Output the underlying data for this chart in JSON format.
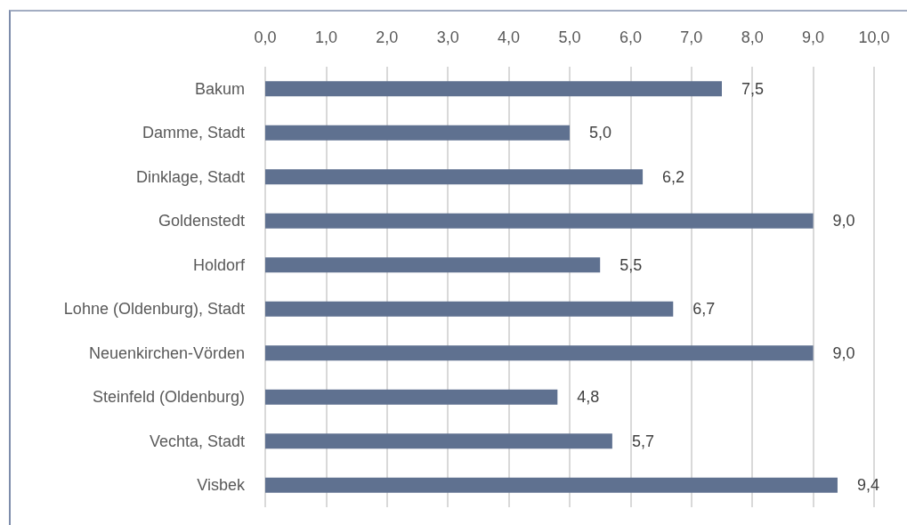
{
  "chart_data": {
    "type": "bar",
    "orientation": "horizontal",
    "categories": [
      "Bakum",
      "Damme, Stadt",
      "Dinklage, Stadt",
      "Goldenstedt",
      "Holdorf",
      "Lohne (Oldenburg), Stadt",
      "Neuenkirchen-Vörden",
      "Steinfeld (Oldenburg)",
      "Vechta, Stadt",
      "Visbek"
    ],
    "values": [
      7.5,
      5.0,
      6.2,
      9.0,
      5.5,
      6.7,
      9.0,
      4.8,
      5.7,
      9.4
    ],
    "value_labels": [
      "7,5",
      "5,0",
      "6,2",
      "9,0",
      "5,5",
      "6,7",
      "9,0",
      "4,8",
      "5,7",
      "9,4"
    ],
    "color": "#5f7190",
    "xlim": [
      0,
      10
    ],
    "xticks": [
      {
        "value": 0,
        "label": "0,0"
      },
      {
        "value": 1,
        "label": "1,0"
      },
      {
        "value": 2,
        "label": "2,0"
      },
      {
        "value": 3,
        "label": "3,0"
      },
      {
        "value": 4,
        "label": "4,0"
      },
      {
        "value": 5,
        "label": "5,0"
      },
      {
        "value": 6,
        "label": "6,0"
      },
      {
        "value": 7,
        "label": "7,0"
      },
      {
        "value": 8,
        "label": "8,0"
      },
      {
        "value": 9,
        "label": "9,0"
      },
      {
        "value": 10,
        "label": "10,0"
      }
    ],
    "grid": "x"
  }
}
